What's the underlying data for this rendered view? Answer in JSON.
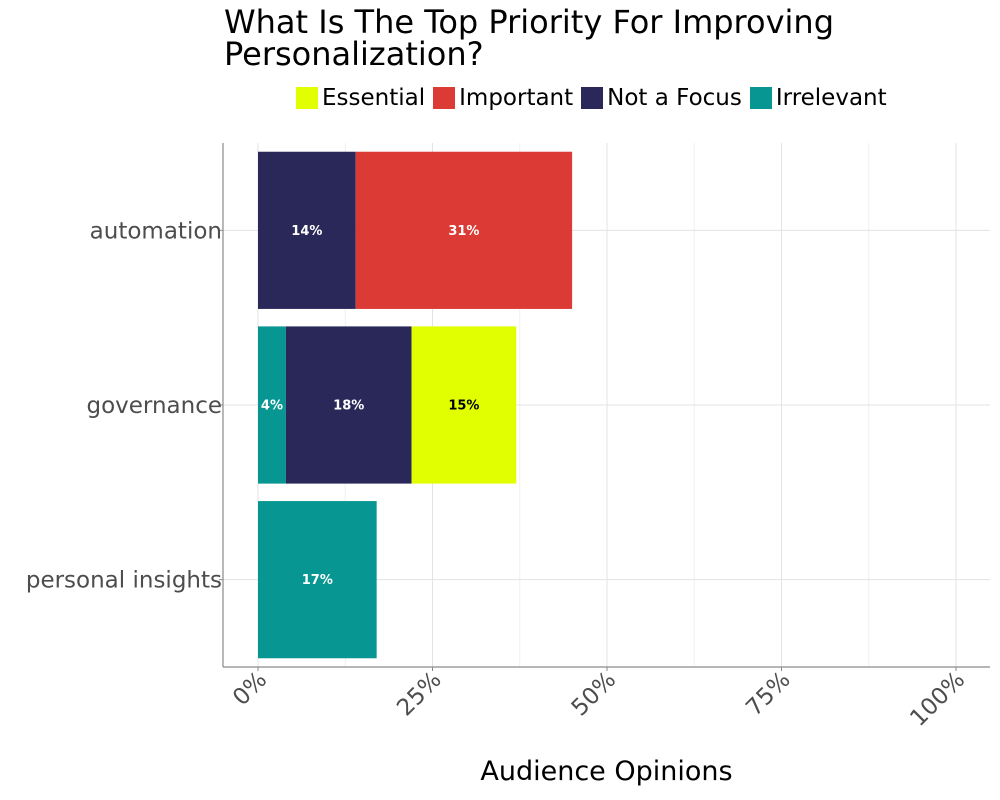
{
  "chart_data": {
    "type": "bar",
    "orientation": "horizontal",
    "stacked": true,
    "title": "What Is The Top Priority For Improving Personalization?",
    "title_lines": [
      "What Is The Top Priority For Improving",
      "Personalization?"
    ],
    "xlabel": "Audience Opinions",
    "ylabel": "",
    "xlim": [
      0,
      1
    ],
    "x_ticks": [
      0,
      0.25,
      0.5,
      0.75,
      1
    ],
    "x_tick_labels": [
      "0%",
      "25%",
      "50%",
      "75%",
      "100%"
    ],
    "grid": true,
    "legend_position": "top",
    "categories": [
      "automation",
      "governance",
      "personal insights"
    ],
    "series": [
      {
        "name": "Irrelevant",
        "color": "#089692",
        "values": [
          0,
          0.04,
          0.17
        ],
        "labels": [
          "",
          "4%",
          "17%"
        ]
      },
      {
        "name": "Not a Focus",
        "color": "#2a2859",
        "values": [
          0.14,
          0.18,
          0
        ],
        "labels": [
          "14%",
          "18%",
          ""
        ]
      },
      {
        "name": "Essential",
        "color": "#e1ff00",
        "values": [
          0,
          0.15,
          0
        ],
        "labels": [
          "",
          "15%",
          ""
        ]
      },
      {
        "name": "Important",
        "color": "#dc3a35",
        "values": [
          0.31,
          0,
          0
        ],
        "labels": [
          "31%",
          "",
          ""
        ]
      }
    ],
    "legend_order": [
      "Essential",
      "Important",
      "Not a Focus",
      "Irrelevant"
    ],
    "label_text_colors": {
      "Irrelevant": "#ffffff",
      "Not a Focus": "#ffffff",
      "Essential": "#000000",
      "Important": "#ffffff"
    }
  }
}
